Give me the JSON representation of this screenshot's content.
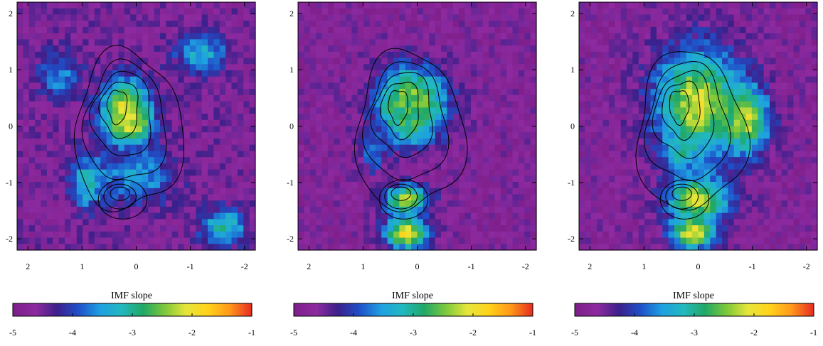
{
  "chart_data": [
    {
      "type": "heatmap",
      "panel": 1,
      "colorbar": {
        "title": "IMF slope",
        "range": [
          -5,
          -1
        ],
        "ticks": [
          "-5",
          "-4",
          "-3",
          "-2",
          "-1"
        ]
      },
      "x_ticks": [
        "2",
        "1",
        "0",
        "-1",
        "-2"
      ],
      "y_ticks": [
        "2",
        "1",
        "0",
        "-1",
        "-2"
      ],
      "xlim": [
        2.2,
        -2.2
      ],
      "ylim": [
        -2.2,
        2.2
      ],
      "grid": false,
      "background_level": -4.6,
      "blobs": [
        {
          "x": 0.2,
          "y": 0.3,
          "rx": 0.55,
          "ry": 0.65,
          "value": -2.0
        },
        {
          "x": 0.1,
          "y": 0.0,
          "rx": 0.45,
          "ry": 0.35,
          "value": -2.2
        },
        {
          "x": 0.0,
          "y": -0.9,
          "rx": 0.8,
          "ry": 0.6,
          "value": -3.4
        },
        {
          "x": 1.4,
          "y": 0.9,
          "rx": 0.5,
          "ry": 0.5,
          "value": -3.6
        },
        {
          "x": -1.2,
          "y": 1.3,
          "rx": 0.6,
          "ry": 0.4,
          "value": -3.3
        },
        {
          "x": -1.6,
          "y": -1.8,
          "rx": 0.5,
          "ry": 0.4,
          "value": -3.0
        },
        {
          "x": 0.9,
          "y": -1.0,
          "rx": 0.4,
          "ry": 0.6,
          "value": -3.2
        }
      ]
    },
    {
      "type": "heatmap",
      "panel": 2,
      "colorbar": {
        "title": "IMF slope",
        "range": [
          -5,
          -1
        ],
        "ticks": [
          "-5",
          "-4",
          "-3",
          "-2",
          "-1"
        ]
      },
      "x_ticks": [
        "2",
        "1",
        "0",
        "-1",
        "-2"
      ],
      "y_ticks": [
        "2",
        "1",
        "0",
        "-1",
        "-2"
      ],
      "xlim": [
        2.2,
        -2.2
      ],
      "ylim": [
        -2.2,
        2.2
      ],
      "grid": false,
      "background_level": -4.7,
      "blobs": [
        {
          "x": 0.1,
          "y": 0.4,
          "rx": 0.8,
          "ry": 0.8,
          "value": -2.1
        },
        {
          "x": 0.2,
          "y": 0.2,
          "rx": 0.4,
          "ry": 0.5,
          "value": -2.8
        },
        {
          "x": 0.2,
          "y": -1.3,
          "rx": 0.5,
          "ry": 0.3,
          "value": -2.1
        },
        {
          "x": 0.2,
          "y": -1.9,
          "rx": 0.5,
          "ry": 0.35,
          "value": -1.9
        },
        {
          "x": 0.8,
          "y": -0.5,
          "rx": 0.3,
          "ry": 0.4,
          "value": -3.7
        }
      ]
    },
    {
      "type": "heatmap",
      "panel": 3,
      "colorbar": {
        "title": "IMF slope",
        "range": [
          -5,
          -1
        ],
        "ticks": [
          "-5",
          "-4",
          "-3",
          "-2",
          "-1"
        ]
      },
      "x_ticks": [
        "2",
        "1",
        "0",
        "-1",
        "-2"
      ],
      "y_ticks": [
        "2",
        "1",
        "0",
        "-1",
        "-2"
      ],
      "xlim": [
        2.2,
        -2.2
      ],
      "ylim": [
        -2.2,
        2.2
      ],
      "grid": false,
      "background_level": -4.7,
      "blobs": [
        {
          "x": 0.0,
          "y": 0.4,
          "rx": 1.0,
          "ry": 1.2,
          "value": -2.1
        },
        {
          "x": -0.9,
          "y": 0.1,
          "rx": 0.5,
          "ry": 0.7,
          "value": -2.2
        },
        {
          "x": 0.0,
          "y": -1.3,
          "rx": 0.7,
          "ry": 0.5,
          "value": -2.2
        },
        {
          "x": 0.3,
          "y": -0.5,
          "rx": 0.4,
          "ry": 0.3,
          "value": -3.1
        },
        {
          "x": 0.1,
          "y": -1.9,
          "rx": 0.5,
          "ry": 0.35,
          "value": -2.0
        }
      ]
    }
  ],
  "colors": {
    "colormap": [
      "#7e1f8a",
      "#8d2aa0",
      "#3d1f8a",
      "#1f4fc8",
      "#1fa0e0",
      "#22b8c0",
      "#20a866",
      "#7cc83c",
      "#e6e63a",
      "#ffd21a",
      "#ff9a1a",
      "#e83020"
    ],
    "contour": "#000000"
  }
}
